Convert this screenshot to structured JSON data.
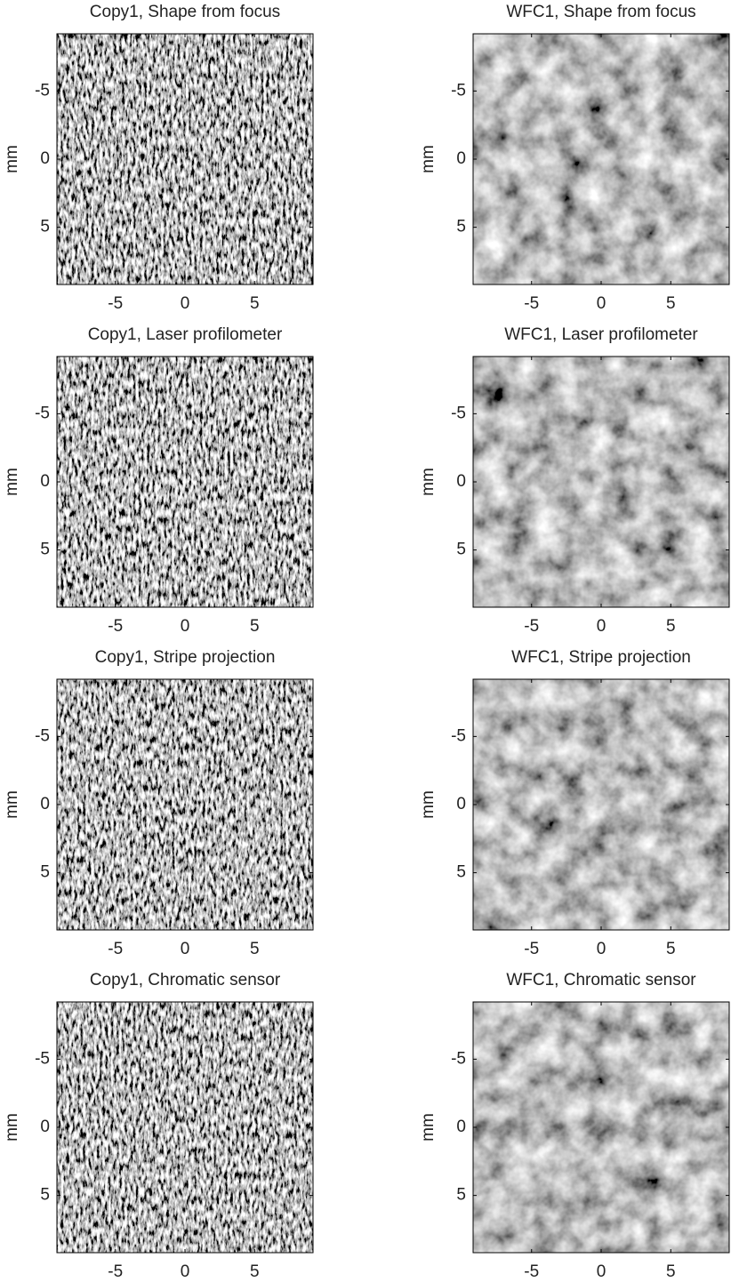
{
  "chart_data": [
    {
      "type": "image",
      "title": "Copy1, Shape from focus",
      "ylabel": "mm",
      "xlim": [
        -9.2,
        9.2
      ],
      "ylim": [
        -9.2,
        9.2
      ],
      "y_reversed": true,
      "xticks": [
        -5,
        0,
        5
      ],
      "yticks": [
        -5,
        0,
        5
      ]
    },
    {
      "type": "image",
      "title": "WFC1, Shape from focus",
      "ylabel": "mm",
      "xlim": [
        -9.2,
        9.2
      ],
      "ylim": [
        -9.2,
        9.2
      ],
      "y_reversed": true,
      "xticks": [
        -5,
        0,
        5
      ],
      "yticks": [
        -5,
        0,
        5
      ]
    },
    {
      "type": "image",
      "title": "Copy1, Laser profilometer",
      "ylabel": "mm",
      "xlim": [
        -9.2,
        9.2
      ],
      "ylim": [
        -9.2,
        9.2
      ],
      "y_reversed": true,
      "xticks": [
        -5,
        0,
        5
      ],
      "yticks": [
        -5,
        0,
        5
      ]
    },
    {
      "type": "image",
      "title": "WFC1, Laser profilometer",
      "ylabel": "mm",
      "xlim": [
        -9.2,
        9.2
      ],
      "ylim": [
        -9.2,
        9.2
      ],
      "y_reversed": true,
      "xticks": [
        -5,
        0,
        5
      ],
      "yticks": [
        -5,
        0,
        5
      ]
    },
    {
      "type": "image",
      "title": "Copy1, Stripe projection",
      "ylabel": "mm",
      "xlim": [
        -9.2,
        9.2
      ],
      "ylim": [
        -9.2,
        9.2
      ],
      "y_reversed": true,
      "xticks": [
        -5,
        0,
        5
      ],
      "yticks": [
        -5,
        0,
        5
      ]
    },
    {
      "type": "image",
      "title": "WFC1, Stripe projection",
      "ylabel": "mm",
      "xlim": [
        -9.2,
        9.2
      ],
      "ylim": [
        -9.2,
        9.2
      ],
      "y_reversed": true,
      "xticks": [
        -5,
        0,
        5
      ],
      "yticks": [
        -5,
        0,
        5
      ]
    },
    {
      "type": "image",
      "title": "Copy1, Chromatic sensor",
      "ylabel": "mm",
      "xlim": [
        -9.2,
        9.2
      ],
      "ylim": [
        -9.2,
        9.2
      ],
      "y_reversed": true,
      "xticks": [
        -5,
        0,
        5
      ],
      "yticks": [
        -5,
        0,
        5
      ]
    },
    {
      "type": "image",
      "title": "WFC1, Chromatic sensor",
      "ylabel": "mm",
      "xlim": [
        -9.2,
        9.2
      ],
      "ylim": [
        -9.2,
        9.2
      ],
      "y_reversed": true,
      "xticks": [
        -5,
        0,
        5
      ],
      "yticks": [
        -5,
        0,
        5
      ]
    }
  ]
}
